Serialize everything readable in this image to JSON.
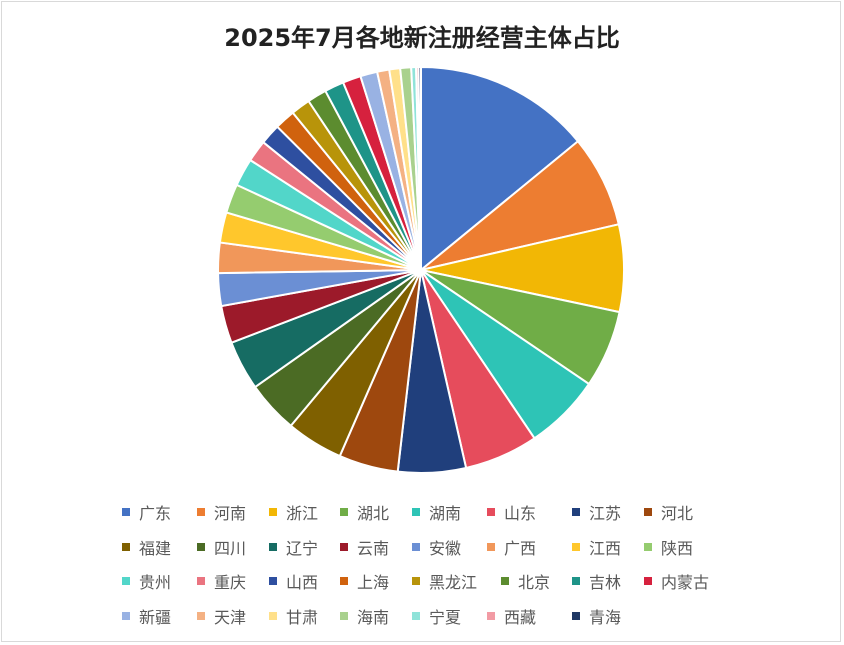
{
  "chart_data": {
    "type": "pie",
    "title": "2025年7月各地新注册经营主体占比",
    "legend_position": "bottom",
    "categories": [
      "广东",
      "河南",
      "浙江",
      "湖北",
      "湖南",
      "山东",
      "江苏",
      "河北",
      "福建",
      "四川",
      "辽宁",
      "云南",
      "安徽",
      "广西",
      "江西",
      "陕西",
      "贵州",
      "重庆",
      "山西",
      "上海",
      "黑龙江",
      "北京",
      "吉林",
      "内蒙古",
      "新疆",
      "天津",
      "甘肃",
      "海南",
      "宁夏",
      "西藏",
      "青海"
    ],
    "values": [
      14.6,
      7.6,
      7.2,
      6.4,
      6.3,
      6.1,
      5.6,
      4.9,
      4.7,
      4.3,
      4.1,
      3.1,
      2.7,
      2.5,
      2.5,
      2.4,
      2.3,
      1.8,
      1.7,
      1.7,
      1.6,
      1.6,
      1.6,
      1.5,
      1.4,
      1.0,
      0.9,
      0.9,
      0.4,
      0.2,
      0.2
    ],
    "colors": [
      "#4472C4",
      "#ED7D31",
      "#F2B705",
      "#70AD47",
      "#2EC4B6",
      "#E64C5C",
      "#203F7C",
      "#9E480E",
      "#7F6000",
      "#4B6B24",
      "#166C63",
      "#9C1A2A",
      "#6B8FD4",
      "#F1975A",
      "#FFC72C",
      "#95CC6F",
      "#52D6C9",
      "#EA7480",
      "#2E4FA0",
      "#D0620E",
      "#B8940A",
      "#5C8C2F",
      "#1E9488",
      "#D6213E",
      "#99B2E3",
      "#F4B183",
      "#FFE08A",
      "#A9D18E",
      "#8FE3D9",
      "#F29BA4",
      "#1F3864"
    ]
  }
}
